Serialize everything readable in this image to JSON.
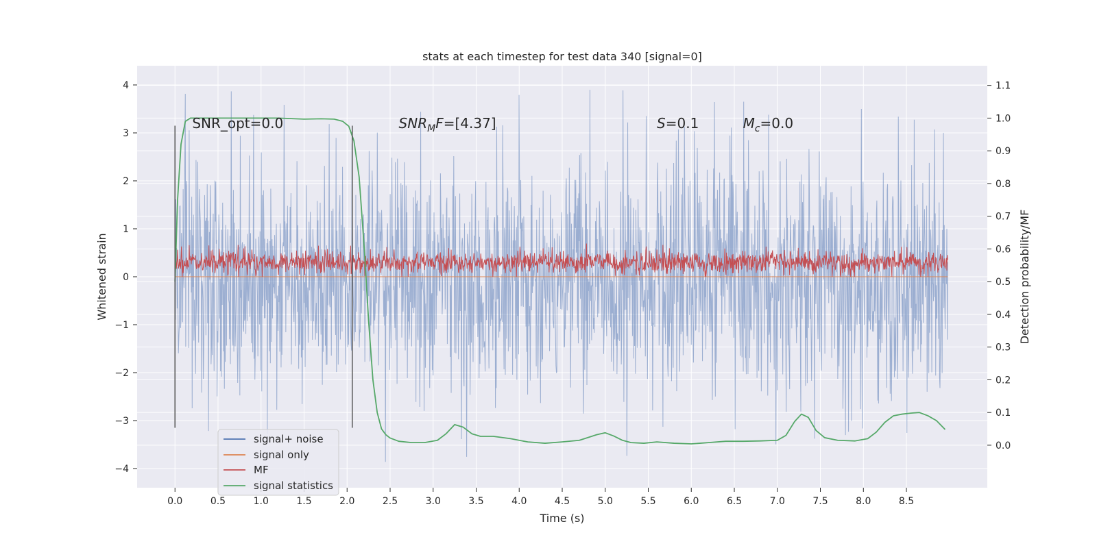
{
  "chart_data": {
    "type": "line",
    "title": "stats at each timestep for test data 340 [signal=0]",
    "xlabel": "Time (s)",
    "ylabel_left": "Whitened strain",
    "ylabel_right": "Detection probability/MF",
    "xlim": [
      -0.44,
      9.44
    ],
    "ylim_left": [
      -4.4,
      4.4
    ],
    "ylim_right": [
      -0.13,
      1.16
    ],
    "x_ticks": [
      0.0,
      0.5,
      1.0,
      1.5,
      2.0,
      2.5,
      3.0,
      3.5,
      4.0,
      4.5,
      5.0,
      5.5,
      6.0,
      6.5,
      7.0,
      7.5,
      8.0,
      8.5
    ],
    "x_tick_labels": [
      "0.0",
      "0.5",
      "1.0",
      "1.5",
      "2.0",
      "2.5",
      "3.0",
      "3.5",
      "4.0",
      "4.5",
      "5.0",
      "5.5",
      "6.0",
      "6.5",
      "7.0",
      "7.5",
      "8.0",
      "8.5"
    ],
    "y_left_ticks": [
      -4,
      -3,
      -2,
      -1,
      0,
      1,
      2,
      3,
      4
    ],
    "y_left_tick_labels": [
      "−4",
      "−3",
      "−2",
      "−1",
      "0",
      "1",
      "2",
      "3",
      "4"
    ],
    "y_right_ticks": [
      0.0,
      0.1,
      0.2,
      0.3,
      0.4,
      0.5,
      0.6,
      0.7,
      0.8,
      0.9,
      1.0,
      1.1
    ],
    "y_right_tick_labels": [
      "0.0",
      "0.1",
      "0.2",
      "0.3",
      "0.4",
      "0.5",
      "0.6",
      "0.7",
      "0.8",
      "0.9",
      "1.0",
      "1.1"
    ],
    "grid": true,
    "vertical_markers": [
      {
        "x": 0.0,
        "y_range": [
          -3.15,
          3.15
        ]
      },
      {
        "x": 2.06,
        "y_range": [
          -3.15,
          3.15
        ]
      }
    ],
    "annotations": [
      {
        "x": 0.2,
        "y": 3.2,
        "text": "SNR_opt=0.0",
        "math": false
      },
      {
        "x": 2.6,
        "y": 3.2,
        "math": true,
        "main": "SNR",
        "sub": "M",
        "after": "F=[4.37]"
      },
      {
        "x": 5.6,
        "y": 3.2,
        "math": true,
        "main": "S",
        "sub": "",
        "after": "=0.1"
      },
      {
        "x": 6.6,
        "y": 3.2,
        "math": true,
        "main": "M",
        "sub": "c",
        "after": "=0.0"
      }
    ],
    "series": [
      {
        "name": "signal+ noise",
        "axis": "left",
        "color": "#4c72b0",
        "kind": "noise",
        "x_range": [
          0.0,
          8.98
        ],
        "n_samples": 1800,
        "typical_range": [
          -2.6,
          2.6
        ],
        "min": -4.0,
        "max": 4.0
      },
      {
        "name": "signal only",
        "axis": "left",
        "color": "#dd8452",
        "kind": "flat",
        "x": [
          0.0,
          8.98
        ],
        "y": [
          0.0,
          0.0
        ]
      },
      {
        "name": "MF",
        "axis": "left",
        "color": "#c44e52",
        "kind": "noise",
        "x_range": [
          0.0,
          8.98
        ],
        "n_samples": 1800,
        "typical_range": [
          0.05,
          0.55
        ],
        "min": 0.0,
        "max": 1.05
      },
      {
        "name": "signal statistics",
        "axis": "right",
        "color": "#55a868",
        "kind": "line",
        "x": [
          0.0,
          0.03,
          0.07,
          0.12,
          0.18,
          0.25,
          0.35,
          0.5,
          0.8,
          1.2,
          1.5,
          1.7,
          1.85,
          1.95,
          2.02,
          2.08,
          2.14,
          2.2,
          2.25,
          2.3,
          2.35,
          2.4,
          2.45,
          2.5,
          2.6,
          2.75,
          2.9,
          3.05,
          3.15,
          3.25,
          3.35,
          3.45,
          3.55,
          3.7,
          3.9,
          4.1,
          4.3,
          4.5,
          4.7,
          4.9,
          5.0,
          5.1,
          5.2,
          5.3,
          5.45,
          5.6,
          5.8,
          6.0,
          6.2,
          6.4,
          6.6,
          6.8,
          7.0,
          7.1,
          7.2,
          7.28,
          7.36,
          7.45,
          7.55,
          7.7,
          7.9,
          8.05,
          8.15,
          8.25,
          8.35,
          8.45,
          8.55,
          8.65,
          8.75,
          8.85,
          8.95
        ],
        "y": [
          0.5,
          0.75,
          0.92,
          0.99,
          1.0,
          1.0,
          1.0,
          1.0,
          1.0,
          1.0,
          0.997,
          0.998,
          0.997,
          0.99,
          0.975,
          0.93,
          0.82,
          0.6,
          0.38,
          0.2,
          0.1,
          0.05,
          0.032,
          0.022,
          0.012,
          0.008,
          0.008,
          0.015,
          0.035,
          0.063,
          0.055,
          0.035,
          0.027,
          0.027,
          0.02,
          0.01,
          0.006,
          0.01,
          0.015,
          0.032,
          0.038,
          0.028,
          0.015,
          0.008,
          0.006,
          0.01,
          0.006,
          0.004,
          0.008,
          0.012,
          0.012,
          0.013,
          0.015,
          0.03,
          0.072,
          0.095,
          0.085,
          0.045,
          0.023,
          0.015,
          0.013,
          0.02,
          0.04,
          0.07,
          0.09,
          0.095,
          0.098,
          0.1,
          0.09,
          0.075,
          0.048
        ]
      }
    ],
    "legend": {
      "location": "lower-left",
      "entries": [
        {
          "label": "signal+ noise",
          "color": "#4c72b0"
        },
        {
          "label": "signal only",
          "color": "#dd8452"
        },
        {
          "label": "MF",
          "color": "#c44e52"
        },
        {
          "label": "signal statistics",
          "color": "#55a868"
        }
      ]
    }
  }
}
